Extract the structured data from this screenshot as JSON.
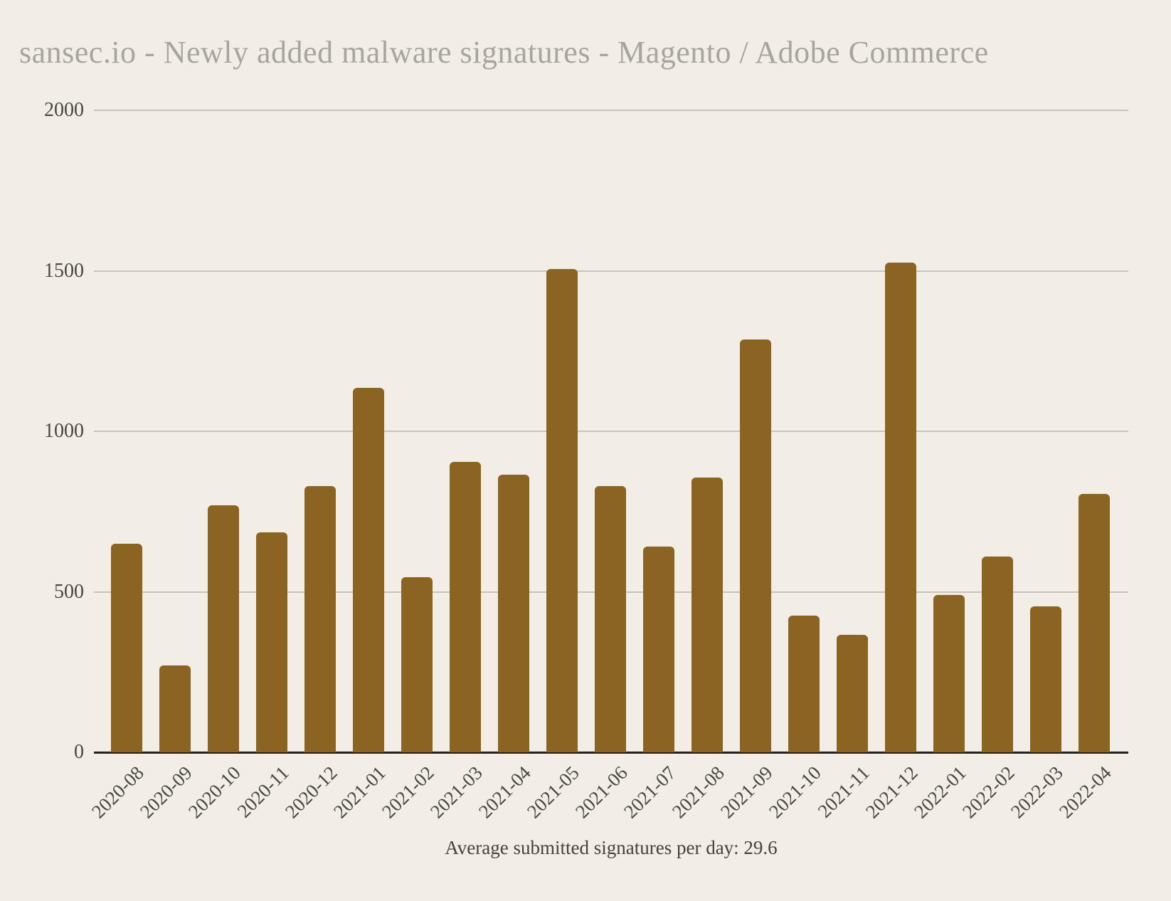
{
  "title": "sansec.io - Newly added malware signatures - Magento / Adobe Commerce",
  "caption": "Average submitted signatures per day: 29.6",
  "colors": {
    "background": "#F2EDE5",
    "bar": "#8B6322",
    "title_text": "#A8A49E",
    "axis_text": "#4A4743",
    "gridline": "#C8C4BC",
    "baseline": "#23211D"
  },
  "chart_data": {
    "type": "bar",
    "title": "sansec.io - Newly added malware signatures - Magento / Adobe Commerce",
    "caption": "Average submitted signatures per day: 29.6",
    "categories": [
      "2020-08",
      "2020-09",
      "2020-10",
      "2020-11",
      "2020-12",
      "2021-01",
      "2021-02",
      "2021-03",
      "2021-04",
      "2021-05",
      "2021-06",
      "2021-07",
      "2021-08",
      "2021-09",
      "2021-10",
      "2021-11",
      "2021-12",
      "2022-01",
      "2022-02",
      "2022-03",
      "2022-04"
    ],
    "values": [
      650,
      270,
      770,
      685,
      830,
      1135,
      545,
      905,
      865,
      1505,
      830,
      640,
      855,
      1285,
      425,
      365,
      1525,
      490,
      610,
      455,
      805
    ],
    "xlabel": "",
    "ylabel": "",
    "yticks": [
      0,
      500,
      1000,
      1500,
      2000
    ],
    "ylim": [
      0,
      2000
    ],
    "grid": "horizontal",
    "legend": "none",
    "bar_color": "#8B6322",
    "x_tick_rotation": -45
  }
}
